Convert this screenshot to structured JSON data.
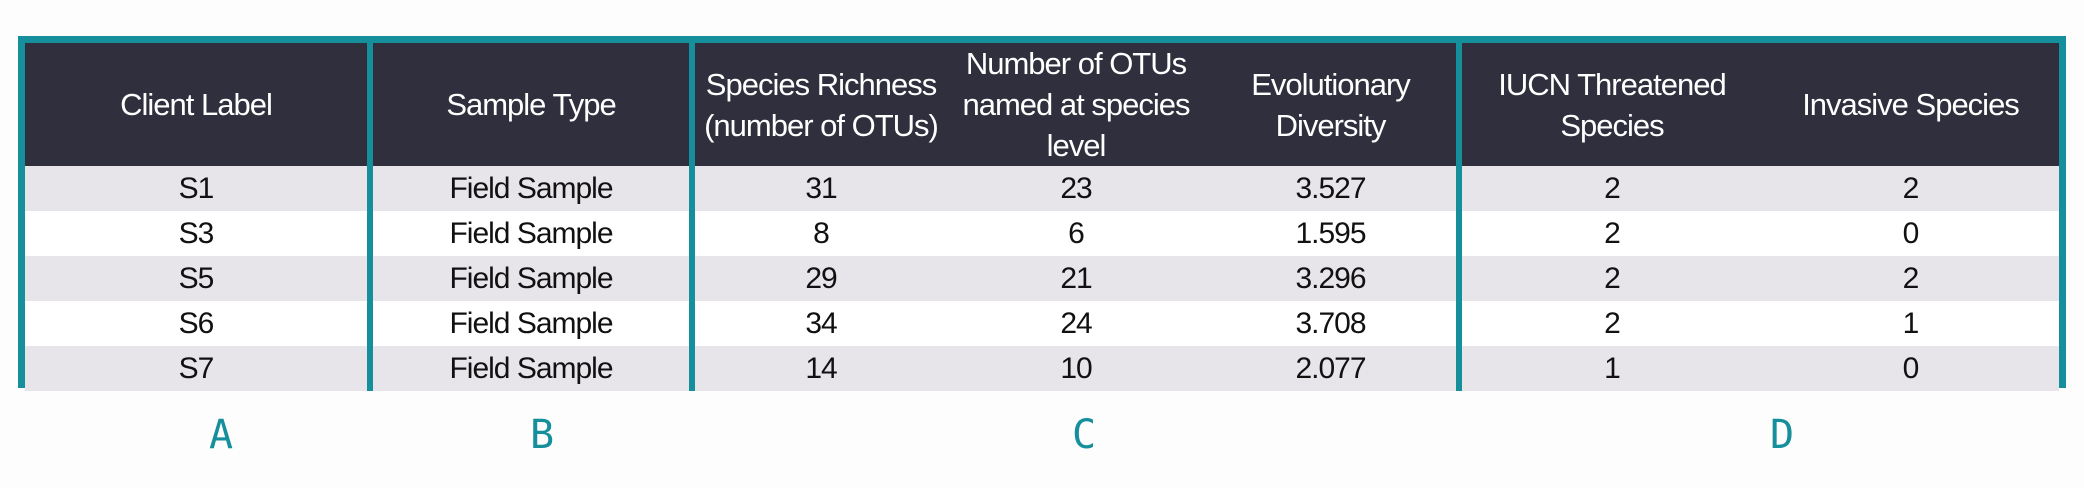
{
  "colors": {
    "frame": "#148f9b",
    "header_bg": "#2f2f3d",
    "header_text": "#ffffff",
    "shaded_row": "#e7e4ea",
    "plain_row": "#ffffff",
    "group_letter": "#148f9b"
  },
  "table": {
    "headers": [
      "Client Label",
      "Sample Type",
      "Species Richness (number of OTUs)",
      "Number of OTUs named at species level",
      "Evolutionary Diversity",
      "IUCN Threatened Species",
      "Invasive Species"
    ],
    "rows": [
      [
        "S1",
        "Field Sample",
        "31",
        "23",
        "3.527",
        "2",
        "2"
      ],
      [
        "S3",
        "Field Sample",
        "8",
        "6",
        "1.595",
        "2",
        "0"
      ],
      [
        "S5",
        "Field Sample",
        "29",
        "21",
        "3.296",
        "2",
        "2"
      ],
      [
        "S6",
        "Field Sample",
        "34",
        "24",
        "3.708",
        "2",
        "1"
      ],
      [
        "S7",
        "Field Sample",
        "14",
        "10",
        "2.077",
        "1",
        "0"
      ]
    ]
  },
  "groups": [
    "A",
    "B",
    "C",
    "D"
  ]
}
